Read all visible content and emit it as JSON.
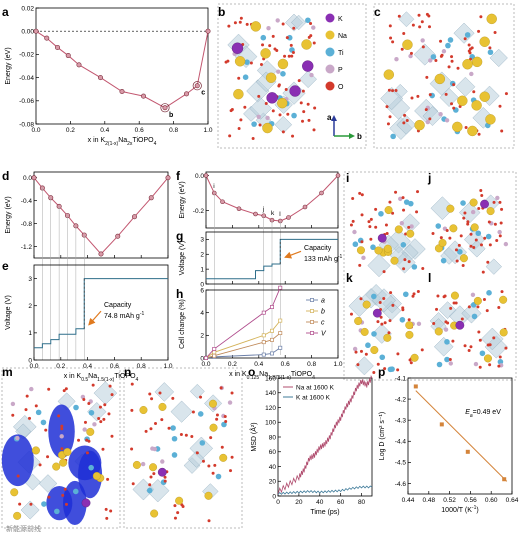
{
  "colors": {
    "line_pink": "#c2566f",
    "marker_fill": "#d99aa8",
    "marker_edge": "#7a2b3a",
    "voltage_blue": "#2e6e8a",
    "orange_arrow": "#e07a1f",
    "series_a": "#6b7fa8",
    "series_b": "#d4b35a",
    "series_c": "#c08a5a",
    "series_V": "#b04c8c",
    "msd_na": "#b04c6e",
    "msd_k": "#3f7b9a",
    "arrhenius_point": "#d4843a",
    "arrhenius_line": "#d4843a",
    "K": "#8a2fb3",
    "Na": "#e8c233",
    "Ti": "#5bb0d6",
    "P": "#c9a8c8",
    "O": "#d33a2c",
    "isosurface": "#1f2fd6"
  },
  "labels": {
    "a": "a",
    "b": "b",
    "c": "c",
    "d": "d",
    "e": "e",
    "f": "f",
    "g": "g",
    "h": "h",
    "i": "i",
    "j": "j",
    "k": "k",
    "l": "l",
    "m": "m",
    "n": "n",
    "o": "o",
    "p": "p"
  },
  "legend_atoms": [
    {
      "symbol": "K",
      "color_key": "K"
    },
    {
      "symbol": "Na",
      "color_key": "Na"
    },
    {
      "symbol": "Ti",
      "color_key": "Ti"
    },
    {
      "symbol": "P",
      "color_key": "P"
    },
    {
      "symbol": "O",
      "color_key": "O"
    }
  ],
  "axes_triad": {
    "a": "a",
    "b": "b"
  },
  "watermark": "新能源前线",
  "chart_data": [
    {
      "panel": "a",
      "type": "line",
      "xlabel": "x in K2(1-x)Na2xTiOPO4",
      "ylabel": "Energy (eV)",
      "xlim": [
        0,
        1.0
      ],
      "ylim": [
        -0.08,
        0.02
      ],
      "xticks": [
        "0.0",
        "0.2",
        "0.4",
        "0.6",
        "0.8",
        "1.0"
      ],
      "yticks": [
        "0.02",
        "0.00",
        "-0.02",
        "-0.04",
        "-0.06",
        "-0.08"
      ],
      "x": [
        0.0,
        0.0625,
        0.125,
        0.1875,
        0.25,
        0.375,
        0.5,
        0.625,
        0.75,
        0.875,
        0.9375,
        1.0
      ],
      "y": [
        0.0,
        -0.006,
        -0.014,
        -0.021,
        -0.029,
        -0.04,
        -0.052,
        -0.056,
        -0.066,
        -0.054,
        -0.047,
        0.0
      ],
      "annotations": [
        {
          "text": "b",
          "x": 0.75,
          "y": -0.066
        },
        {
          "text": "c",
          "x": 0.9375,
          "y": -0.047
        }
      ]
    },
    {
      "panel": "d",
      "type": "line",
      "ylabel": "Energy (eV)",
      "xlim": [
        0,
        1.0
      ],
      "ylim": [
        -1.4,
        0.1
      ],
      "yticks": [
        "0.0",
        "-0.4",
        "-0.8",
        "-1.2"
      ],
      "x": [
        0.0,
        0.0625,
        0.125,
        0.1875,
        0.25,
        0.3125,
        0.375,
        0.5,
        0.625,
        0.75,
        0.875,
        1.0
      ],
      "y": [
        0.0,
        -0.18,
        -0.35,
        -0.5,
        -0.66,
        -0.84,
        -1.0,
        -1.33,
        -1.02,
        -0.68,
        -0.35,
        0.0
      ]
    },
    {
      "panel": "e",
      "type": "line",
      "xlabel": "x in K0.5Na1.5(1-x)TiOPO4",
      "ylabel": "Voltage (V)",
      "xlim": [
        0,
        1.0
      ],
      "ylim": [
        0,
        3.5
      ],
      "xticks": [
        "0.0",
        "0.2",
        "0.4",
        "0.6",
        "0.8",
        "1.0"
      ],
      "yticks": [
        "0",
        "1",
        "2",
        "3"
      ],
      "steps": [
        {
          "x0": 0.0,
          "x1": 0.0625,
          "y": 0.45
        },
        {
          "x0": 0.0625,
          "x1": 0.125,
          "y": 0.6
        },
        {
          "x0": 0.125,
          "x1": 0.1875,
          "y": 0.75
        },
        {
          "x0": 0.1875,
          "x1": 0.3125,
          "y": 0.95
        },
        {
          "x0": 0.3125,
          "x1": 0.375,
          "y": 1.15
        },
        {
          "x0": 0.375,
          "x1": 0.5,
          "y": 3.0
        },
        {
          "x0": 0.5,
          "x1": 1.0,
          "y": 3.0
        }
      ],
      "annotation": "Capacity",
      "annotation2": "74.8 mAh g",
      "annotation2_sup": "-1"
    },
    {
      "panel": "f",
      "type": "line",
      "ylabel": "Energy (eV)",
      "xlim": [
        0,
        1.0
      ],
      "ylim": [
        -0.3,
        0.02
      ],
      "yticks": [
        "0.0",
        "-0.2"
      ],
      "x": [
        0.0,
        0.0625,
        0.125,
        0.25,
        0.375,
        0.4375,
        0.5,
        0.5625,
        0.625,
        0.75,
        0.875,
        1.0
      ],
      "y": [
        0.0,
        -0.1,
        -0.15,
        -0.19,
        -0.22,
        -0.23,
        -0.255,
        -0.26,
        -0.24,
        -0.18,
        -0.1,
        0.0
      ],
      "annotations": [
        {
          "text": "i",
          "x": 0.0625
        },
        {
          "text": "j",
          "x": 0.4375
        },
        {
          "text": "k",
          "x": 0.5
        },
        {
          "text": "l",
          "x": 0.5625
        }
      ]
    },
    {
      "panel": "g",
      "type": "line",
      "ylabel": "Voltage (V)",
      "xlim": [
        0,
        1.0
      ],
      "ylim": [
        0,
        3.5
      ],
      "yticks": [
        "0",
        "1",
        "2",
        "3"
      ],
      "steps": [
        {
          "x0": 0.0,
          "x1": 0.375,
          "y": 0.35
        },
        {
          "x0": 0.375,
          "x1": 0.4375,
          "y": 0.9
        },
        {
          "x0": 0.4375,
          "x1": 0.5,
          "y": 1.2
        },
        {
          "x0": 0.5,
          "x1": 0.5625,
          "y": 1.35
        },
        {
          "x0": 0.5625,
          "x1": 1.0,
          "y": 3.0
        }
      ],
      "annotation": "Capacity",
      "annotation2": "133 mAh g",
      "annotation2_sup": "-1"
    },
    {
      "panel": "h",
      "type": "line",
      "xlabel": "x in K0.125Na1.875(1-x)TiOPO4",
      "ylabel": "Cell change (%)",
      "xlim": [
        0,
        1.0
      ],
      "ylim": [
        0,
        6
      ],
      "xticks": [
        "0.0",
        "0.2",
        "0.4",
        "0.6",
        "0.8",
        "1.0"
      ],
      "yticks": [
        "0",
        "2",
        "4",
        "6"
      ],
      "x": [
        0.0,
        0.0625,
        0.4375,
        0.5,
        0.5625
      ],
      "series": [
        {
          "name": "a",
          "values": [
            0.0,
            0.1,
            0.3,
            0.4,
            0.9
          ]
        },
        {
          "name": "b",
          "values": [
            0.0,
            0.5,
            2.0,
            2.4,
            3.3
          ]
        },
        {
          "name": "c",
          "values": [
            0.0,
            0.2,
            1.4,
            1.6,
            2.2
          ]
        },
        {
          "name": "V",
          "values": [
            0.0,
            0.8,
            4.0,
            4.5,
            6.2
          ]
        }
      ],
      "legend_position": "right"
    },
    {
      "panel": "o",
      "type": "line",
      "xlabel": "Time (ps)",
      "ylabel": "MSD (Å²)",
      "xlim": [
        0,
        90
      ],
      "ylim": [
        0,
        160
      ],
      "xticks": [
        "0",
        "20",
        "40",
        "60",
        "80"
      ],
      "yticks": [
        "0",
        "20",
        "40",
        "60",
        "80",
        "100",
        "120",
        "140",
        "160"
      ],
      "series": [
        {
          "name": "Na at 1600 K",
          "x": [
            0,
            10,
            20,
            25,
            30,
            35,
            40,
            45,
            50,
            55,
            60,
            65,
            70,
            75,
            80,
            85,
            90
          ],
          "values": [
            5,
            15,
            25,
            35,
            50,
            55,
            65,
            70,
            80,
            95,
            105,
            120,
            130,
            145,
            155,
            150,
            160
          ]
        },
        {
          "name": "K at 1600 K",
          "x": [
            0,
            10,
            20,
            30,
            40,
            50,
            60,
            70,
            80,
            90
          ],
          "values": [
            3,
            4,
            5,
            6,
            5,
            6,
            7,
            10,
            12,
            12
          ]
        }
      ],
      "legend_position": "top-left"
    },
    {
      "panel": "p",
      "type": "scatter",
      "xlabel": "1000/T (K",
      "xlabel_sup": "-1",
      "xlabel_end": ")",
      "ylabel": "Log D (cm² s⁻¹)",
      "xlim": [
        0.44,
        0.64
      ],
      "ylim": [
        -4.65,
        -4.1
      ],
      "xticks": [
        "0.44",
        "0.48",
        "0.52",
        "0.56",
        "0.60",
        "0.64"
      ],
      "yticks": [
        "-4.1",
        "-4.2",
        "-4.3",
        "-4.4",
        "-4.5",
        "-4.6"
      ],
      "x": [
        0.455,
        0.505,
        0.555,
        0.625
      ],
      "y": [
        -4.14,
        -4.32,
        -4.45,
        -4.58
      ],
      "fit": {
        "x": [
          0.455,
          0.63
        ],
        "y": [
          -4.16,
          -4.59
        ]
      },
      "annotation_prefix": "E",
      "annotation_sub": "a",
      "annotation_value": "=0.49 eV"
    }
  ]
}
